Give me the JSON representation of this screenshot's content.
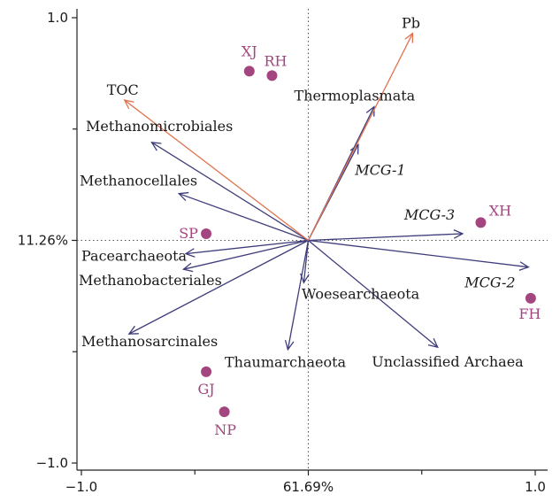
{
  "chart_data": {
    "type": "scatter",
    "subtype": "rda-biplot",
    "xlabel": "61.69%",
    "ylabel": "11.26%",
    "xlim": [
      -1.0,
      1.0
    ],
    "ylim": [
      -1.0,
      1.0
    ],
    "x_ticks": [
      {
        "value": -1.0,
        "label": "−1.0"
      },
      {
        "value": 1.0,
        "label": "1.0"
      }
    ],
    "y_ticks": [
      {
        "value": 1.0,
        "label": "1.0"
      },
      {
        "value": -1.0,
        "label": "−1.0"
      }
    ],
    "grid": false,
    "reference_lines": "dotted lines through origin",
    "colors": {
      "environment": "#e0734f",
      "taxa": "#3f3d7a",
      "sites": "#a3457f",
      "axis": "#222222"
    },
    "environmental_vectors": [
      {
        "name": "Pb",
        "x": 0.46,
        "y": 0.93
      },
      {
        "name": "TOC",
        "x": -0.81,
        "y": 0.63
      }
    ],
    "taxa_vectors": [
      {
        "name": "Thermoplasmata",
        "x": 0.29,
        "y": 0.6,
        "italic": false
      },
      {
        "name": "MCG-1",
        "x": 0.22,
        "y": 0.43,
        "italic": true
      },
      {
        "name": "Methanomicrobiales",
        "x": -0.69,
        "y": 0.44,
        "italic": false
      },
      {
        "name": "Methanocellales",
        "x": -0.57,
        "y": 0.21,
        "italic": false
      },
      {
        "name": "MCG-3",
        "x": 0.68,
        "y": 0.03,
        "italic": true
      },
      {
        "name": "Pacearchaeota",
        "x": -0.54,
        "y": -0.06,
        "italic": false
      },
      {
        "name": "Methanobacteriales",
        "x": -0.55,
        "y": -0.13,
        "italic": false
      },
      {
        "name": "MCG-2",
        "x": 0.97,
        "y": -0.12,
        "italic": true
      },
      {
        "name": "Woesearchaeota",
        "x": -0.02,
        "y": -0.19,
        "italic": false
      },
      {
        "name": "Unclassified Archaea",
        "x": 0.57,
        "y": -0.48,
        "italic": false
      },
      {
        "name": "Methanosarcinales",
        "x": -0.79,
        "y": -0.42,
        "italic": false
      },
      {
        "name": "Thaumarchaeota",
        "x": -0.09,
        "y": -0.49,
        "italic": false
      }
    ],
    "sites": [
      {
        "name": "XJ",
        "x": -0.26,
        "y": 0.76
      },
      {
        "name": "RH",
        "x": -0.16,
        "y": 0.74
      },
      {
        "name": "SP",
        "x": -0.45,
        "y": 0.03
      },
      {
        "name": "XH",
        "x": 0.76,
        "y": 0.08
      },
      {
        "name": "FH",
        "x": 0.98,
        "y": -0.26
      },
      {
        "name": "GJ",
        "x": -0.45,
        "y": -0.59
      },
      {
        "name": "NP",
        "x": -0.37,
        "y": -0.77
      }
    ]
  }
}
